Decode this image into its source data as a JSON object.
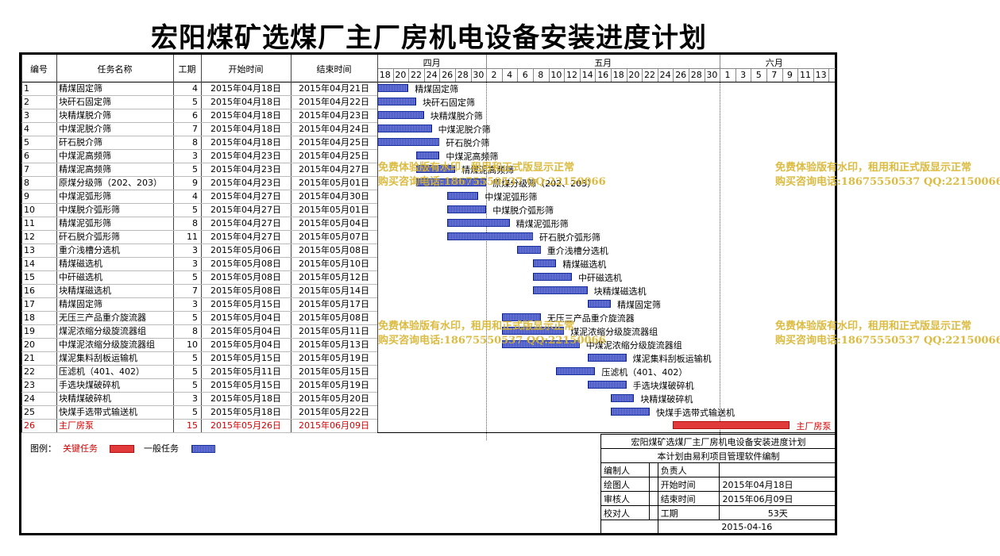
{
  "title": "宏阳煤矿选煤厂主厂房机电设备安装进度计划",
  "headers": {
    "id": "编号",
    "name": "任务名称",
    "days": "工期",
    "start": "开始时间",
    "end": "结束时间"
  },
  "months": [
    {
      "label": "四月",
      "ticks": [
        "18",
        "20",
        "22",
        "24",
        "26",
        "28",
        "30"
      ]
    },
    {
      "label": "五月",
      "ticks": [
        "2",
        "4",
        "6",
        "8",
        "10",
        "12",
        "14",
        "16",
        "18",
        "20",
        "22",
        "24",
        "26",
        "28",
        "30"
      ]
    },
    {
      "label": "六月",
      "ticks": [
        "1",
        "3",
        "5",
        "7",
        "9",
        "11",
        "13"
      ]
    }
  ],
  "chart_data": {
    "type": "gantt",
    "tasks": [
      {
        "id": "1",
        "name": "精煤固定筛",
        "days": "4",
        "start": "2015年04月18日",
        "end": "2015年04月21日",
        "critical": false
      },
      {
        "id": "2",
        "name": "块矸石固定筛",
        "days": "5",
        "start": "2015年04月18日",
        "end": "2015年04月22日",
        "critical": false
      },
      {
        "id": "3",
        "name": "块精煤脱介筛",
        "days": "6",
        "start": "2015年04月18日",
        "end": "2015年04月23日",
        "critical": false
      },
      {
        "id": "4",
        "name": "中煤泥脱介筛",
        "days": "7",
        "start": "2015年04月18日",
        "end": "2015年04月24日",
        "critical": false
      },
      {
        "id": "5",
        "name": "矸石脱介筛",
        "days": "8",
        "start": "2015年04月18日",
        "end": "2015年04月25日",
        "critical": false
      },
      {
        "id": "6",
        "name": "中煤泥高频筛",
        "days": "3",
        "start": "2015年04月23日",
        "end": "2015年04月25日",
        "critical": false
      },
      {
        "id": "7",
        "name": "精煤泥高频筛",
        "days": "5",
        "start": "2015年04月23日",
        "end": "2015年04月27日",
        "critical": false
      },
      {
        "id": "8",
        "name": "原煤分级筛（202、203）",
        "days": "9",
        "start": "2015年04月23日",
        "end": "2015年05月01日",
        "critical": false
      },
      {
        "id": "9",
        "name": "中煤泥弧形筛",
        "days": "4",
        "start": "2015年04月27日",
        "end": "2015年04月30日",
        "critical": false
      },
      {
        "id": "10",
        "name": "中煤脱介弧形筛",
        "days": "5",
        "start": "2015年04月27日",
        "end": "2015年05月01日",
        "critical": false
      },
      {
        "id": "11",
        "name": "精煤泥弧形筛",
        "days": "8",
        "start": "2015年04月27日",
        "end": "2015年05月04日",
        "critical": false
      },
      {
        "id": "12",
        "name": "矸石脱介弧形筛",
        "days": "11",
        "start": "2015年04月27日",
        "end": "2015年05月07日",
        "critical": false
      },
      {
        "id": "13",
        "name": "重介浅槽分选机",
        "days": "3",
        "start": "2015年05月06日",
        "end": "2015年05月08日",
        "critical": false
      },
      {
        "id": "14",
        "name": "精煤磁选机",
        "days": "3",
        "start": "2015年05月08日",
        "end": "2015年05月10日",
        "critical": false
      },
      {
        "id": "15",
        "name": "中矸磁选机",
        "days": "5",
        "start": "2015年05月08日",
        "end": "2015年05月12日",
        "critical": false
      },
      {
        "id": "16",
        "name": "块精煤磁选机",
        "days": "7",
        "start": "2015年05月08日",
        "end": "2015年05月14日",
        "critical": false
      },
      {
        "id": "17",
        "name": "精煤固定筛",
        "days": "3",
        "start": "2015年05月15日",
        "end": "2015年05月17日",
        "critical": false
      },
      {
        "id": "18",
        "name": "无压三产品重介旋流器",
        "days": "5",
        "start": "2015年05月04日",
        "end": "2015年05月08日",
        "critical": false
      },
      {
        "id": "19",
        "name": "煤泥浓缩分级旋流器组",
        "days": "8",
        "start": "2015年05月04日",
        "end": "2015年05月11日",
        "critical": false
      },
      {
        "id": "20",
        "name": "中煤泥浓缩分级旋流器组",
        "days": "10",
        "start": "2015年05月04日",
        "end": "2015年05月13日",
        "critical": false
      },
      {
        "id": "21",
        "name": "煤泥集料刮板运输机",
        "days": "5",
        "start": "2015年05月15日",
        "end": "2015年05月19日",
        "critical": false
      },
      {
        "id": "22",
        "name": "压滤机（401、402）",
        "days": "5",
        "start": "2015年05月11日",
        "end": "2015年05月15日",
        "critical": false
      },
      {
        "id": "23",
        "name": "手选块煤破碎机",
        "days": "5",
        "start": "2015年05月15日",
        "end": "2015年05月19日",
        "critical": false
      },
      {
        "id": "24",
        "name": "块精煤破碎机",
        "days": "3",
        "start": "2015年05月18日",
        "end": "2015年05月20日",
        "critical": false
      },
      {
        "id": "25",
        "name": "快煤手选带式输送机",
        "days": "5",
        "start": "2015年05月18日",
        "end": "2015年05月22日",
        "critical": false
      },
      {
        "id": "26",
        "name": "主厂房泵",
        "days": "15",
        "start": "2015年05月26日",
        "end": "2015年06月09日",
        "critical": true
      }
    ],
    "colors": {
      "normal": "#5566cc",
      "critical": "#e23a3a"
    }
  },
  "legend": {
    "label": "图例：",
    "critical": "关键任务",
    "normal": "一般任务"
  },
  "info": {
    "title": "宏阳煤矿选煤厂主厂房机电设备安装进度计划",
    "subtitle": "本计划由易利项目管理软件编制",
    "editor": "编制人",
    "owner": "负责人",
    "drawer": "绘图人",
    "start_label": "开始时间",
    "start_value": "2015年04月18日",
    "reviewer": "审核人",
    "end_label": "结束时间",
    "end_value": "2015年06月09日",
    "checker": "校对人",
    "duration_label": "工期",
    "duration_value": "53天",
    "date": "2015-04-16"
  },
  "watermark": {
    "line1": "免费体验版有水印，租用和正式版显示正常",
    "line2": "购买咨询电话:18675550537 QQ:22150066"
  }
}
